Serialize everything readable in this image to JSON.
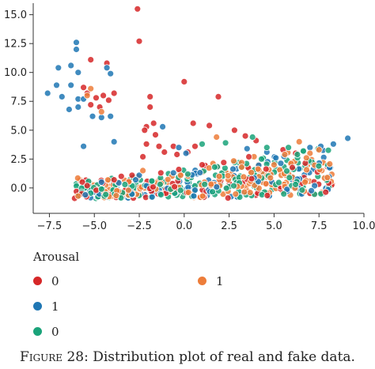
{
  "chart_data": {
    "type": "scatter",
    "title": "",
    "xlabel": "",
    "ylabel": "",
    "xlim": [
      -8.4,
      10.0
    ],
    "ylim": [
      -2.2,
      16.0
    ],
    "xticks": [
      -7.5,
      -5.0,
      -2.5,
      0.0,
      2.5,
      5.0,
      7.5,
      10.0
    ],
    "xtick_labels": [
      "−7.5",
      "−5.0",
      "−2.5",
      "0.0",
      "2.5",
      "5.0",
      "7.5",
      "10.0"
    ],
    "yticks": [
      0.0,
      2.5,
      5.0,
      7.5,
      10.0,
      12.5,
      15.0
    ],
    "ytick_labels": [
      "0.0",
      "2.5",
      "5.0",
      "7.5",
      "10.0",
      "12.5",
      "15.0"
    ],
    "grid": false,
    "legend_title": "Arousal",
    "legend": [
      {
        "label": "0",
        "color": "#d62728"
      },
      {
        "label": "1",
        "color": "#ed7d3a"
      },
      {
        "label": "1",
        "color": "#1f77b4"
      },
      {
        "label": "0",
        "color": "#1aa37a"
      }
    ],
    "series": [
      {
        "color": "#d62728",
        "points": [
          [
            -2.6,
            15.5
          ],
          [
            -2.5,
            12.7
          ],
          [
            0,
            9.2
          ],
          [
            -5.2,
            11.1
          ],
          [
            -4.3,
            10.8
          ],
          [
            -5.6,
            8.7
          ],
          [
            -5.4,
            8.2
          ],
          [
            -4.9,
            7.8
          ],
          [
            -4.5,
            8.0
          ],
          [
            -3.9,
            8.2
          ],
          [
            -5.2,
            7.2
          ],
          [
            -4.7,
            7.0
          ],
          [
            -4.2,
            7.6
          ],
          [
            -1.9,
            7.9
          ],
          [
            -1.9,
            7.0
          ],
          [
            -1.7,
            5.6
          ],
          [
            -1.6,
            4.6
          ],
          [
            -2.1,
            5.3
          ],
          [
            -2.2,
            5.0
          ],
          [
            -2.1,
            3.8
          ],
          [
            -2.3,
            2.7
          ],
          [
            -1.4,
            3.6
          ],
          [
            -1.1,
            3.1
          ],
          [
            -0.6,
            3.6
          ],
          [
            -0.4,
            2.9
          ],
          [
            0.2,
            3.1
          ],
          [
            0.6,
            3.6
          ],
          [
            0.5,
            5.6
          ],
          [
            1.9,
            7.9
          ],
          [
            1.4,
            5.4
          ],
          [
            2.8,
            5.0
          ],
          [
            3.4,
            4.5
          ],
          [
            4.0,
            4.1
          ],
          [
            -3.5,
            1.0
          ],
          [
            -2.9,
            1.1
          ],
          [
            -1.3,
            1.3
          ],
          [
            -0.3,
            1.6
          ],
          [
            1.0,
            2.0
          ],
          [
            2.2,
            2.2
          ],
          [
            3.6,
            2.7
          ],
          [
            5.5,
            3.3
          ],
          [
            6.2,
            3.0
          ],
          [
            -6.1,
            -0.9
          ],
          [
            -5.7,
            -0.5
          ],
          [
            -5.4,
            0.2
          ],
          [
            -4.9,
            -0.2
          ],
          [
            -3.9,
            0.7
          ]
        ]
      },
      {
        "color": "#1f77b4",
        "points": [
          [
            -6.0,
            12.6
          ],
          [
            -6.0,
            12.0
          ],
          [
            -6.3,
            10.6
          ],
          [
            -4.3,
            10.4
          ],
          [
            -4.1,
            9.9
          ],
          [
            -5.9,
            10.0
          ],
          [
            -7.0,
            10.4
          ],
          [
            -7.6,
            8.2
          ],
          [
            -7.1,
            8.9
          ],
          [
            -6.8,
            7.9
          ],
          [
            -6.3,
            8.9
          ],
          [
            -5.9,
            7.7
          ],
          [
            -5.9,
            7.0
          ],
          [
            -5.6,
            7.7
          ],
          [
            -6.4,
            6.8
          ],
          [
            -5.1,
            6.2
          ],
          [
            -4.6,
            6.1
          ],
          [
            -4.1,
            6.2
          ],
          [
            -5.6,
            3.6
          ],
          [
            -3.9,
            4.0
          ],
          [
            -1.2,
            5.3
          ],
          [
            -0.3,
            3.5
          ],
          [
            0.1,
            3.0
          ],
          [
            -2.5,
            1.1
          ],
          [
            -0.6,
            1.3
          ],
          [
            4.6,
            3.1
          ],
          [
            7.0,
            3.5
          ],
          [
            7.6,
            3.6
          ],
          [
            8.3,
            3.8
          ],
          [
            9.1,
            4.3
          ],
          [
            -5.5,
            -0.6
          ],
          [
            -4.6,
            0.5
          ],
          [
            -2.7,
            0.7
          ],
          [
            3.5,
            3.4
          ],
          [
            5.1,
            2.6
          ]
        ]
      },
      {
        "color": "#ed7d3a",
        "points": [
          [
            -5.2,
            8.6
          ],
          [
            -5.4,
            8.0
          ],
          [
            -4.6,
            6.6
          ],
          [
            -2.3,
            1.5
          ],
          [
            1.8,
            4.4
          ],
          [
            5.6,
            2.9
          ],
          [
            6.4,
            4.0
          ],
          [
            7.0,
            3.0
          ],
          [
            7.5,
            3.3
          ],
          [
            6.8,
            2.6
          ],
          [
            5.0,
            2.0
          ],
          [
            -5.9,
            -0.7
          ],
          [
            -3.1,
            -0.2
          ],
          [
            -0.2,
            1.1
          ],
          [
            3.2,
            1.8
          ]
        ]
      },
      {
        "color": "#1aa37a",
        "points": [
          [
            1.0,
            3.8
          ],
          [
            2.3,
            3.9
          ],
          [
            3.8,
            4.4
          ],
          [
            4.6,
            3.5
          ],
          [
            5.8,
            3.5
          ],
          [
            6.3,
            2.9
          ],
          [
            -4.6,
            -0.1
          ],
          [
            -3.3,
            0.3
          ],
          [
            -1.8,
            0.6
          ],
          [
            0.2,
            1.2
          ],
          [
            1.7,
            1.8
          ],
          [
            4.3,
            2.5
          ]
        ]
      }
    ]
  },
  "caption": {
    "label": "Figure 28:",
    "text": "Distribution plot of real and fake data."
  }
}
